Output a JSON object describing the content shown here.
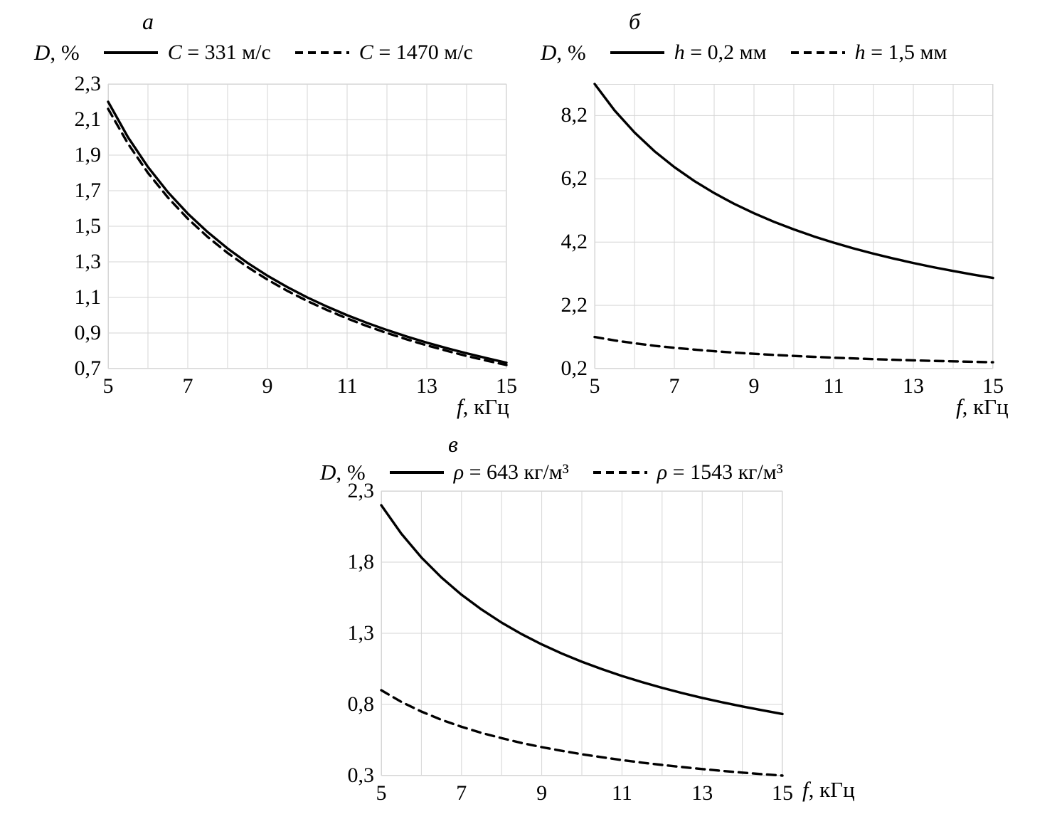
{
  "figure": {
    "background": "#ffffff",
    "grid_color": "#d6d6d6",
    "curve_color": "#000000"
  },
  "chart_data": [
    {
      "id": "a",
      "type": "line",
      "panel_label": "а",
      "ylabel_var": "D",
      "ylabel_rest": ", %",
      "xlabel_var": "f",
      "xlabel_rest": ", кГц",
      "x_range": [
        5,
        15
      ],
      "y_range": [
        0.7,
        2.3
      ],
      "x_grid_step": 1,
      "grid": true,
      "legend_position": "top",
      "x_ticks": [
        5,
        7,
        9,
        11,
        13,
        15
      ],
      "x_tick_labels": [
        "5",
        "7",
        "9",
        "11",
        "13",
        "15"
      ],
      "y_ticks": [
        0.7,
        0.9,
        1.1,
        1.3,
        1.5,
        1.7,
        1.9,
        2.1,
        2.3
      ],
      "y_tick_labels": [
        "0,7",
        "0,9",
        "1,1",
        "1,3",
        "1,5",
        "1,7",
        "1,9",
        "2,1",
        "2,3"
      ],
      "x": [
        5,
        5.5,
        6,
        6.5,
        7,
        7.5,
        8,
        8.5,
        9,
        9.5,
        10,
        10.5,
        11,
        11.5,
        12,
        12.5,
        13,
        13.5,
        14,
        14.5,
        15
      ],
      "series": [
        {
          "label_var": "C",
          "label_rest": " = 331 м/с",
          "style": "solid",
          "values": [
            2.2,
            2.0,
            1.833,
            1.692,
            1.571,
            1.467,
            1.375,
            1.294,
            1.222,
            1.158,
            1.1,
            1.048,
            1.0,
            0.957,
            0.917,
            0.88,
            0.846,
            0.815,
            0.786,
            0.759,
            0.733
          ]
        },
        {
          "label_var": "C",
          "label_rest": " = 1470 м/с",
          "style": "dashed",
          "values": [
            2.16,
            1.964,
            1.8,
            1.662,
            1.543,
            1.44,
            1.35,
            1.271,
            1.2,
            1.137,
            1.08,
            1.029,
            0.982,
            0.939,
            0.9,
            0.864,
            0.831,
            0.8,
            0.771,
            0.745,
            0.72
          ]
        }
      ]
    },
    {
      "id": "b",
      "type": "line",
      "panel_label": "б",
      "ylabel_var": "D",
      "ylabel_rest": ", %",
      "xlabel_var": "f",
      "xlabel_rest": ", кГц",
      "x_range": [
        5,
        15
      ],
      "y_range": [
        0.2,
        9.2
      ],
      "x_grid_step": 1,
      "grid": true,
      "legend_position": "top",
      "x_ticks": [
        5,
        7,
        9,
        11,
        13,
        15
      ],
      "x_tick_labels": [
        "5",
        "7",
        "9",
        "11",
        "13",
        "15"
      ],
      "y_ticks": [
        0.2,
        2.2,
        4.2,
        6.2,
        8.2
      ],
      "y_tick_labels": [
        "0,2",
        "2,2",
        "4,2",
        "6,2",
        "8,2"
      ],
      "x": [
        5,
        5.5,
        6,
        6.5,
        7,
        7.5,
        8,
        8.5,
        9,
        9.5,
        10,
        10.5,
        11,
        11.5,
        12,
        12.5,
        13,
        13.5,
        14,
        14.5,
        15
      ],
      "series": [
        {
          "label_var": "h",
          "label_rest": " = 0,2 мм",
          "style": "solid",
          "values": [
            9.2,
            8.364,
            7.667,
            7.077,
            6.571,
            6.133,
            5.75,
            5.412,
            5.111,
            4.842,
            4.6,
            4.381,
            4.182,
            4.0,
            3.833,
            3.68,
            3.538,
            3.407,
            3.286,
            3.172,
            3.067
          ]
        },
        {
          "label_var": "h",
          "label_rest": " = 1,5 мм",
          "style": "dashed",
          "values": [
            1.2,
            1.091,
            1.0,
            0.923,
            0.857,
            0.8,
            0.75,
            0.706,
            0.667,
            0.632,
            0.6,
            0.571,
            0.545,
            0.522,
            0.5,
            0.48,
            0.462,
            0.444,
            0.429,
            0.414,
            0.4
          ]
        }
      ]
    },
    {
      "id": "v",
      "type": "line",
      "panel_label": "в",
      "ylabel_var": "D",
      "ylabel_rest": ", %",
      "xlabel_var": "f",
      "xlabel_rest": ", кГц",
      "x_range": [
        5,
        15
      ],
      "y_range": [
        0.3,
        2.3
      ],
      "x_grid_step": 1,
      "grid": true,
      "legend_position": "top",
      "x_ticks": [
        5,
        7,
        9,
        11,
        13,
        15
      ],
      "x_tick_labels": [
        "5",
        "7",
        "9",
        "11",
        "13",
        "15"
      ],
      "y_ticks": [
        0.3,
        0.8,
        1.3,
        1.8,
        2.3
      ],
      "y_tick_labels": [
        "0,3",
        "0,8",
        "1,3",
        "1,8",
        "2,3"
      ],
      "x": [
        5,
        5.5,
        6,
        6.5,
        7,
        7.5,
        8,
        8.5,
        9,
        9.5,
        10,
        10.5,
        11,
        11.5,
        12,
        12.5,
        13,
        13.5,
        14,
        14.5,
        15
      ],
      "series": [
        {
          "label_var": "ρ",
          "label_rest": " = 643 кг/м³",
          "style": "solid",
          "values": [
            2.2,
            2.0,
            1.833,
            1.692,
            1.571,
            1.467,
            1.375,
            1.294,
            1.222,
            1.158,
            1.1,
            1.048,
            1.0,
            0.957,
            0.917,
            0.88,
            0.846,
            0.815,
            0.786,
            0.759,
            0.733
          ]
        },
        {
          "label_var": "ρ",
          "label_rest": " = 1543 кг/м³",
          "style": "dashed",
          "values": [
            0.9,
            0.818,
            0.75,
            0.692,
            0.643,
            0.6,
            0.563,
            0.529,
            0.5,
            0.474,
            0.45,
            0.429,
            0.409,
            0.391,
            0.375,
            0.36,
            0.346,
            0.333,
            0.321,
            0.31,
            0.3
          ]
        }
      ]
    }
  ]
}
